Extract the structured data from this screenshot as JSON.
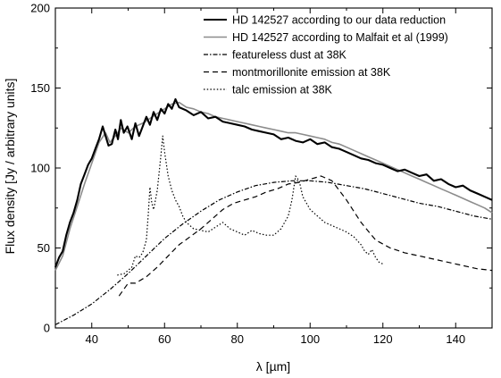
{
  "chart_data": {
    "type": "line",
    "title": "",
    "xlabel": "λ [µm]",
    "ylabel": "Flux density [Jy / arbitrary units]",
    "xlim": [
      30,
      150
    ],
    "ylim": [
      0,
      200
    ],
    "x_ticks": [
      40,
      60,
      80,
      100,
      120,
      140
    ],
    "y_ticks": [
      0,
      50,
      100,
      150,
      200
    ],
    "x_tick_labels": [
      "40",
      "60",
      "80",
      "100",
      "120",
      "140"
    ],
    "y_tick_labels": [
      "0",
      "50",
      "100",
      "150",
      "200"
    ],
    "grid": false,
    "legend_position": "top-right",
    "series": [
      {
        "name": "HD 142527 according to our data reduction",
        "style": "solid-thick",
        "color": "#000000",
        "x": [
          30,
          31,
          32,
          33,
          34,
          35,
          36,
          37,
          38,
          39,
          40,
          41,
          42,
          43,
          43.8,
          44.6,
          45.5,
          46.5,
          47.2,
          48,
          48.8,
          49.8,
          51,
          52,
          53,
          54,
          55,
          56,
          57,
          58,
          59,
          60,
          61,
          62,
          63,
          64,
          66,
          68,
          70,
          72,
          74,
          76,
          78,
          80,
          82,
          84,
          86,
          88,
          90,
          92,
          94,
          96,
          98,
          100,
          102,
          104,
          106,
          108,
          110,
          112,
          114,
          116,
          118,
          120,
          122,
          124,
          126,
          128,
          130,
          132,
          134,
          136,
          138,
          140,
          142,
          144,
          146,
          148,
          150
        ],
        "y": [
          38,
          44,
          48,
          58,
          66,
          72,
          80,
          90,
          96,
          102,
          106,
          112,
          118,
          126,
          120,
          114,
          115,
          124,
          118,
          130,
          122,
          126,
          118,
          128,
          120,
          126,
          132,
          127,
          135,
          130,
          137,
          134,
          140,
          137,
          143,
          138,
          136,
          133,
          135,
          131,
          132,
          129,
          128,
          127,
          126,
          124,
          123,
          122,
          121,
          118,
          119,
          117,
          116,
          118,
          115,
          116,
          113,
          112,
          110,
          108,
          106,
          105,
          103,
          102,
          100,
          98,
          99,
          97,
          95,
          96,
          92,
          93,
          90,
          88,
          89,
          86,
          84,
          82,
          80
        ]
      },
      {
        "name": "HD 142527 according to Malfait et al (1999)",
        "style": "solid-gray",
        "color": "#8c8c8c",
        "x": [
          30,
          32,
          34,
          36,
          38,
          40,
          42,
          43.8,
          45,
          46.5,
          48,
          50,
          52,
          54,
          56,
          58,
          60,
          62,
          64,
          66,
          68,
          70,
          72,
          74,
          76,
          78,
          80,
          82,
          84,
          86,
          88,
          90,
          92,
          94,
          96,
          98,
          100,
          102,
          104,
          106,
          108,
          110,
          112,
          114,
          116,
          118,
          120,
          122,
          124,
          126,
          128,
          130,
          132,
          134,
          136,
          138,
          140,
          142,
          144,
          146,
          148,
          150
        ],
        "y": [
          36,
          45,
          62,
          76,
          90,
          103,
          116,
          122,
          116,
          120,
          125,
          122,
          126,
          128,
          131,
          134,
          137,
          140,
          141,
          138,
          137,
          135,
          134,
          132,
          131,
          130,
          129,
          128,
          127,
          126,
          125,
          124,
          123,
          122,
          122,
          121,
          120,
          119,
          118,
          116,
          115,
          113,
          111,
          109,
          107,
          105,
          103,
          101,
          99,
          97,
          95,
          93,
          91,
          89,
          87,
          85,
          83,
          81,
          79,
          77,
          75,
          72
        ]
      },
      {
        "name": "featureless dust at 38K",
        "style": "dashdot",
        "color": "#000000",
        "x": [
          30,
          35,
          40,
          45,
          50,
          55,
          60,
          65,
          70,
          75,
          80,
          85,
          90,
          95,
          100,
          105,
          110,
          115,
          120,
          125,
          130,
          135,
          140,
          145,
          150
        ],
        "y": [
          2,
          8,
          15,
          24,
          34,
          45,
          56,
          65,
          73,
          80,
          85,
          89,
          91,
          92,
          92,
          91,
          89,
          87,
          84,
          81,
          78,
          76,
          73,
          70,
          68
        ]
      },
      {
        "name": "montmorillonite emission at 38K",
        "style": "dashed",
        "color": "#000000",
        "x": [
          47.5,
          50,
          52,
          55,
          58,
          61,
          64,
          67,
          70,
          73,
          76,
          79,
          82,
          85,
          88,
          91,
          94,
          97,
          100,
          103,
          106,
          110,
          114,
          118,
          122,
          126,
          130,
          134,
          138,
          142,
          146,
          150
        ],
        "y": [
          20,
          28,
          28,
          32,
          38,
          45,
          52,
          57,
          62,
          68,
          74,
          78,
          80,
          82,
          85,
          87,
          90,
          91,
          93,
          95,
          92,
          80,
          66,
          55,
          50,
          47,
          45,
          43,
          41,
          39,
          37,
          36
        ]
      },
      {
        "name": "talc emission at 38K",
        "style": "dotted",
        "color": "#000000",
        "x": [
          47,
          49,
          51,
          52,
          53,
          54,
          55,
          55.5,
          56,
          56.5,
          57,
          58,
          59,
          59.5,
          60,
          61,
          62,
          63,
          64,
          65,
          66,
          68,
          70,
          72,
          74,
          76,
          78,
          80,
          82,
          84,
          86,
          88,
          90,
          92,
          93,
          94,
          95,
          96,
          97,
          98,
          100,
          102,
          104,
          106,
          108,
          110,
          112,
          114,
          115,
          116,
          117,
          118,
          119,
          120
        ],
        "y": [
          33,
          34,
          38,
          45,
          44,
          47,
          55,
          70,
          88,
          78,
          74,
          86,
          108,
          120,
          110,
          95,
          86,
          80,
          76,
          70,
          66,
          62,
          61,
          60,
          63,
          66,
          62,
          60,
          58,
          61,
          59,
          58,
          58,
          62,
          66,
          70,
          80,
          95,
          92,
          82,
          74,
          70,
          66,
          64,
          62,
          60,
          57,
          52,
          48,
          46,
          49,
          44,
          41,
          40
        ]
      }
    ]
  }
}
